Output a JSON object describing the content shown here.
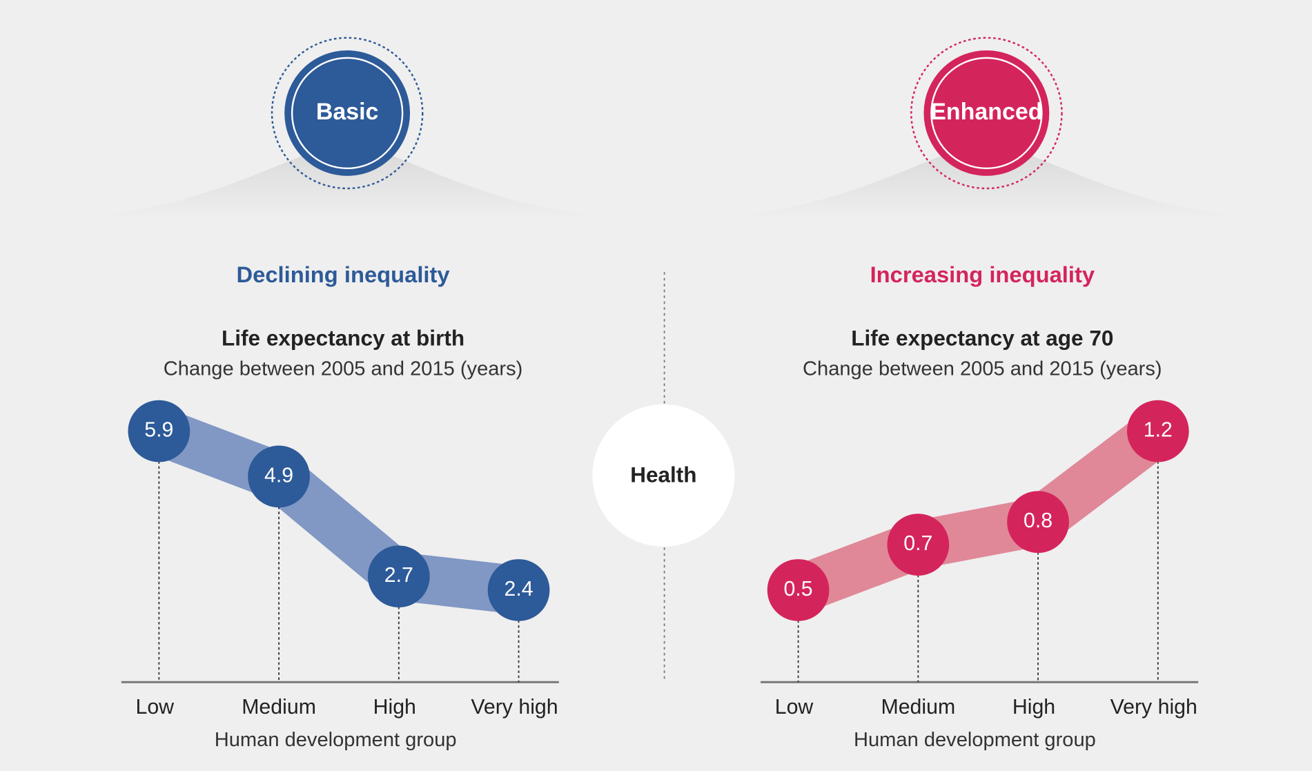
{
  "center_label": "Health",
  "chart_data": [
    {
      "type": "line",
      "badge": "Basic",
      "heading": "Declining inequality",
      "title": "Life expectancy at birth",
      "subtitle": "Change between 2005 and 2015 (years)",
      "categories": [
        "Low",
        "Medium",
        "High",
        "Very high"
      ],
      "values": [
        5.9,
        4.9,
        2.7,
        2.4
      ],
      "x_label": "Human development group",
      "color": "#2d5a98",
      "band_color": "#8197c4"
    },
    {
      "type": "line",
      "badge": "Enhanced",
      "heading": "Increasing inequality",
      "title": "Life expectancy at age 70",
      "subtitle": "Change between 2005 and 2015 (years)",
      "categories": [
        "Low",
        "Medium",
        "High",
        "Very high"
      ],
      "values": [
        0.5,
        0.7,
        0.8,
        1.2
      ],
      "x_label": "Human development group",
      "color": "#d4245c",
      "band_color": "#e08898"
    }
  ]
}
